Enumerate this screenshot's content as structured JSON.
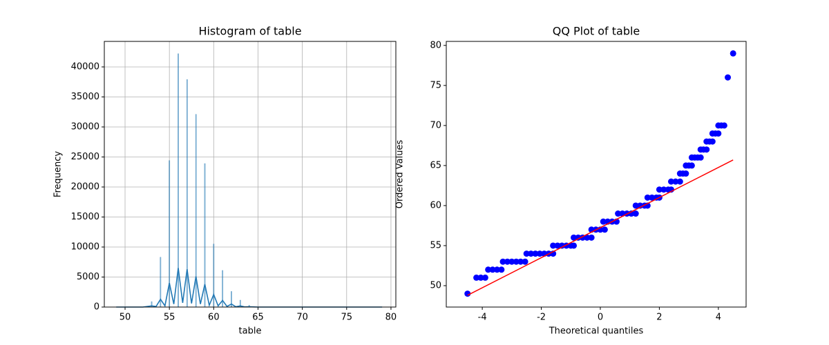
{
  "chart_data": [
    {
      "type": "histogram",
      "title": "Histogram of table",
      "xlabel": "table",
      "ylabel": "Frequency",
      "bins": [
        49,
        52.95,
        53.05,
        53.95,
        54.05,
        54.95,
        55.05,
        55.95,
        56.05,
        56.95,
        57.05,
        57.95,
        58.05,
        58.95,
        59.05,
        59.95,
        60.05,
        60.95,
        61.05,
        61.95,
        62.05,
        62.95,
        63.05,
        63.95,
        64.05,
        79
      ],
      "values": [
        0,
        900,
        0,
        8300,
        0,
        24400,
        0,
        42200,
        0,
        37900,
        0,
        32100,
        0,
        23900,
        0,
        10500,
        0,
        6100,
        0,
        2600,
        0,
        1150,
        0,
        300,
        0
      ],
      "color": "#1f77b4",
      "kde": {
        "color": "#1f77b4",
        "x": [
          49,
          52,
          53,
          53.5,
          54,
          54.5,
          55,
          55.5,
          56,
          56.5,
          57,
          57.5,
          58,
          58.5,
          59,
          59.5,
          60,
          60.5,
          61,
          61.5,
          62,
          62.5,
          63,
          63.5,
          64,
          65,
          79
        ],
        "values": [
          0,
          0,
          200,
          100,
          1300,
          200,
          4000,
          500,
          6500,
          700,
          6300,
          600,
          5100,
          500,
          3800,
          300,
          2100,
          200,
          1100,
          100,
          500,
          50,
          200,
          30,
          50,
          0,
          0
        ]
      },
      "xlim": [
        47.66,
        80.55
      ],
      "ylim": [
        0,
        44250
      ],
      "xticks": [
        50,
        55,
        60,
        65,
        70,
        75,
        80
      ],
      "yticks": [
        0,
        5000,
        10000,
        15000,
        20000,
        25000,
        30000,
        35000,
        40000
      ],
      "grid": true
    },
    {
      "type": "scatter",
      "title": "QQ Plot of table",
      "xlabel": "Theoretical quantiles",
      "ylabel": "Ordered Values",
      "color": "#0000ff",
      "x": [
        -4.5,
        -4.2,
        -4.05,
        -3.9,
        -3.8,
        -3.65,
        -3.5,
        -3.35,
        -3.3,
        -3.15,
        -3.0,
        -2.85,
        -2.7,
        -2.55,
        -2.5,
        -2.35,
        -2.2,
        -2.05,
        -1.9,
        -1.75,
        -1.6,
        -1.6,
        -1.45,
        -1.3,
        -1.15,
        -1.0,
        -0.9,
        -0.9,
        -0.75,
        -0.6,
        -0.45,
        -0.3,
        -0.3,
        -0.15,
        0,
        0.15,
        0.1,
        0.25,
        0.4,
        0.55,
        0.6,
        0.75,
        0.9,
        1.05,
        1.2,
        1.2,
        1.35,
        1.5,
        1.6,
        1.6,
        1.75,
        1.9,
        2.0,
        2.0,
        2.15,
        2.3,
        2.4,
        2.4,
        2.55,
        2.7,
        2.7,
        2.8,
        2.9,
        2.9,
        3.0,
        3.1,
        3.1,
        3.2,
        3.3,
        3.4,
        3.4,
        3.5,
        3.6,
        3.6,
        3.7,
        3.8,
        3.8,
        3.9,
        4.0,
        4.0,
        4.1,
        4.2,
        4.32,
        4.5
      ],
      "values": [
        49,
        51,
        51,
        51,
        52,
        52,
        52,
        52,
        53,
        53,
        53,
        53,
        53,
        53,
        54,
        54,
        54,
        54,
        54,
        54,
        54,
        55,
        55,
        55,
        55,
        55,
        55,
        56,
        56,
        56,
        56,
        56,
        57,
        57,
        57,
        57,
        58,
        58,
        58,
        58,
        59,
        59,
        59,
        59,
        59,
        60,
        60,
        60,
        60,
        61,
        61,
        61,
        61,
        62,
        62,
        62,
        62,
        63,
        63,
        63,
        64,
        64,
        64,
        65,
        65,
        65,
        66,
        66,
        66,
        66,
        67,
        67,
        67,
        68,
        68,
        68,
        69,
        69,
        69,
        70,
        70,
        70,
        76,
        79
      ],
      "fit": {
        "color": "#ff0000",
        "x": [
          -4.5,
          4.5
        ],
        "values": [
          48.8,
          65.7
        ]
      },
      "xlim": [
        -5.22,
        4.94
      ],
      "ylim": [
        47.33,
        80.5
      ],
      "xticks": [
        -4,
        -2,
        0,
        2,
        4
      ],
      "yticks": [
        50,
        55,
        60,
        65,
        70,
        75,
        80
      ],
      "grid": false
    }
  ]
}
